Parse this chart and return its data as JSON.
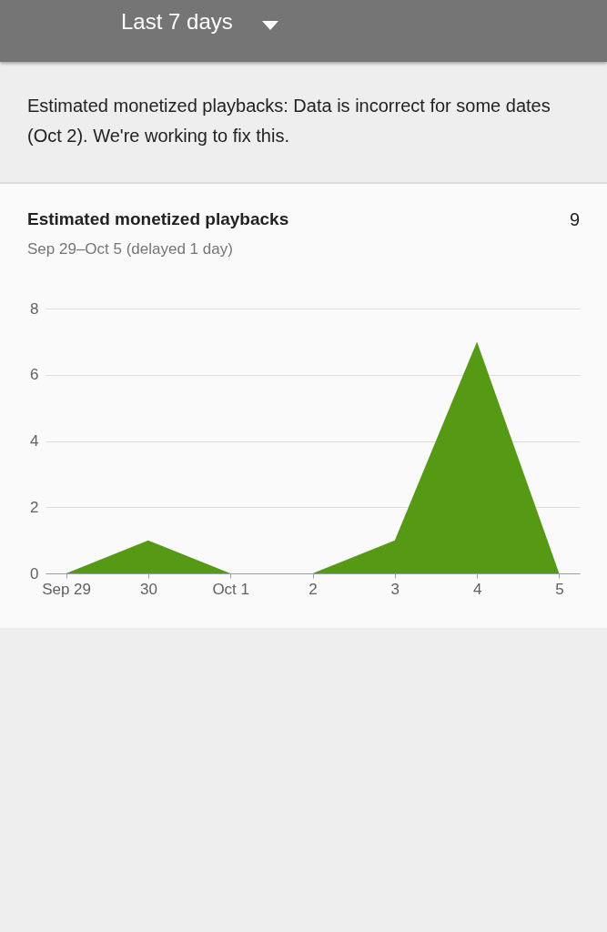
{
  "chart_data": {
    "type": "area",
    "title": "Estimated monetized playbacks",
    "subtitle": "Sep 29–Oct 5 (delayed 1 day)",
    "annotations": [
      "Last 7 days",
      "Estimated monetized playbacks: Data is incorrect for some dates (Oct 2). We're working to fix this.",
      "9"
    ],
    "categories": [
      "Sep 29",
      "30",
      "Oct 1",
      "2",
      "3",
      "4",
      "5"
    ],
    "series": [
      {
        "color": "#559914",
        "values": [
          0,
          1,
          0,
          0,
          1,
          7,
          0
        ]
      }
    ],
    "ylim": [
      0,
      8
    ],
    "yticks": [
      0,
      2,
      4,
      6,
      8
    ],
    "grid": "y"
  }
}
